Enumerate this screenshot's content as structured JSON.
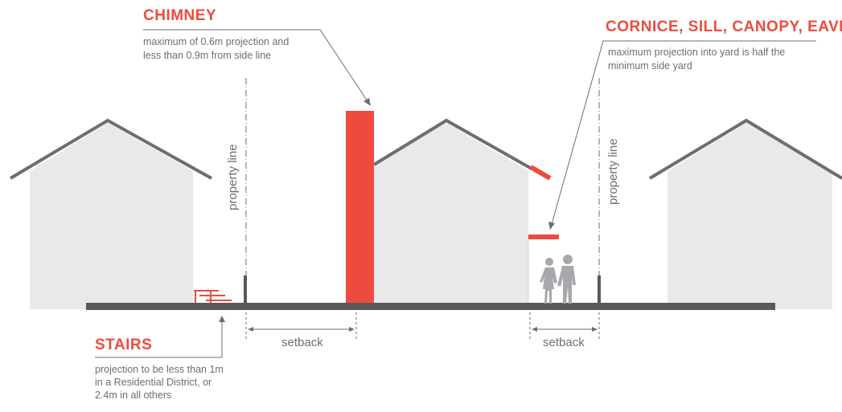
{
  "chimney": {
    "title": "CHIMNEY",
    "desc_line1": "maximum of 0.6m projection and",
    "desc_line2": "less than 0.9m from side line"
  },
  "cornice": {
    "title": "CORNICE, SILL, CANOPY, EAVE",
    "desc_line1": "maximum projection into yard is half the",
    "desc_line2": "minimum side yard"
  },
  "stairs": {
    "title": "STAIRS",
    "desc_line1": "projection to be less than 1m",
    "desc_line2": "in a Residential District, or",
    "desc_line3": "2.4m in all others"
  },
  "labels": {
    "property_line_left": "property line",
    "property_line_right": "property line",
    "setback_left": "setback",
    "setback_right": "setback"
  },
  "colors": {
    "accent": "#ee4b3f",
    "house_fill": "#e8e9e9",
    "house_outline": "#6d6e70",
    "ground": "#58595b",
    "text": "#6d6e70"
  }
}
